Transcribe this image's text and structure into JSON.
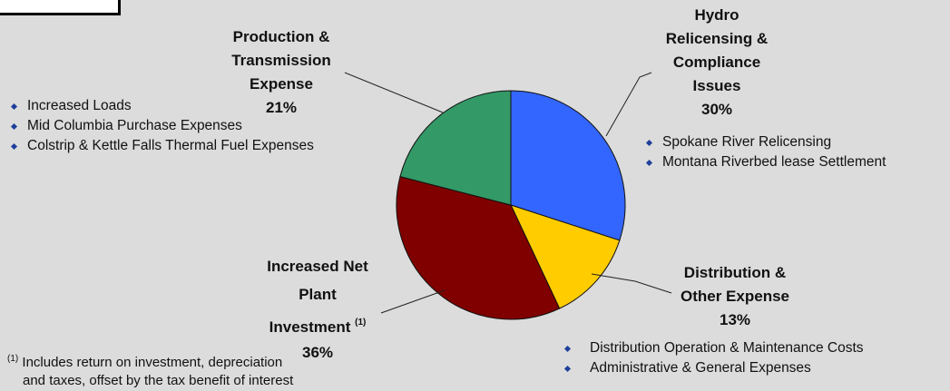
{
  "chart_data": {
    "type": "pie",
    "slices": [
      {
        "id": "hydro",
        "label_lines": [
          "Hydro",
          "Relicensing &",
          "Compliance",
          "Issues"
        ],
        "value": 30,
        "pct_label": "30%",
        "color": "#3366ff",
        "bullets": [
          "Spokane River Relicensing",
          "Montana Riverbed lease Settlement"
        ]
      },
      {
        "id": "distribution",
        "label_lines": [
          "Distribution &",
          "Other Expense"
        ],
        "value": 13,
        "pct_label": "13%",
        "color": "#ffcc00",
        "bullets": [
          "Distribution Operation & Maintenance Costs",
          "Administrative & General Expenses"
        ]
      },
      {
        "id": "plant",
        "label_lines": [
          "Increased Net",
          "Plant",
          "Investment"
        ],
        "footnote_mark": "(1)",
        "value": 36,
        "pct_label": "36%",
        "color": "#800000",
        "bullets": []
      },
      {
        "id": "production",
        "label_lines": [
          "Production &",
          "Transmission",
          "Expense"
        ],
        "value": 21,
        "pct_label": "21%",
        "color": "#339966",
        "bullets": [
          "Increased Loads",
          "Mid Columbia Purchase Expenses",
          "Colstrip & Kettle Falls Thermal Fuel Expenses"
        ]
      }
    ]
  },
  "footnote": {
    "mark": "(1)",
    "lines": [
      "Includes return on investment, depreciation",
      "and taxes, offset by the tax benefit of interest"
    ]
  }
}
